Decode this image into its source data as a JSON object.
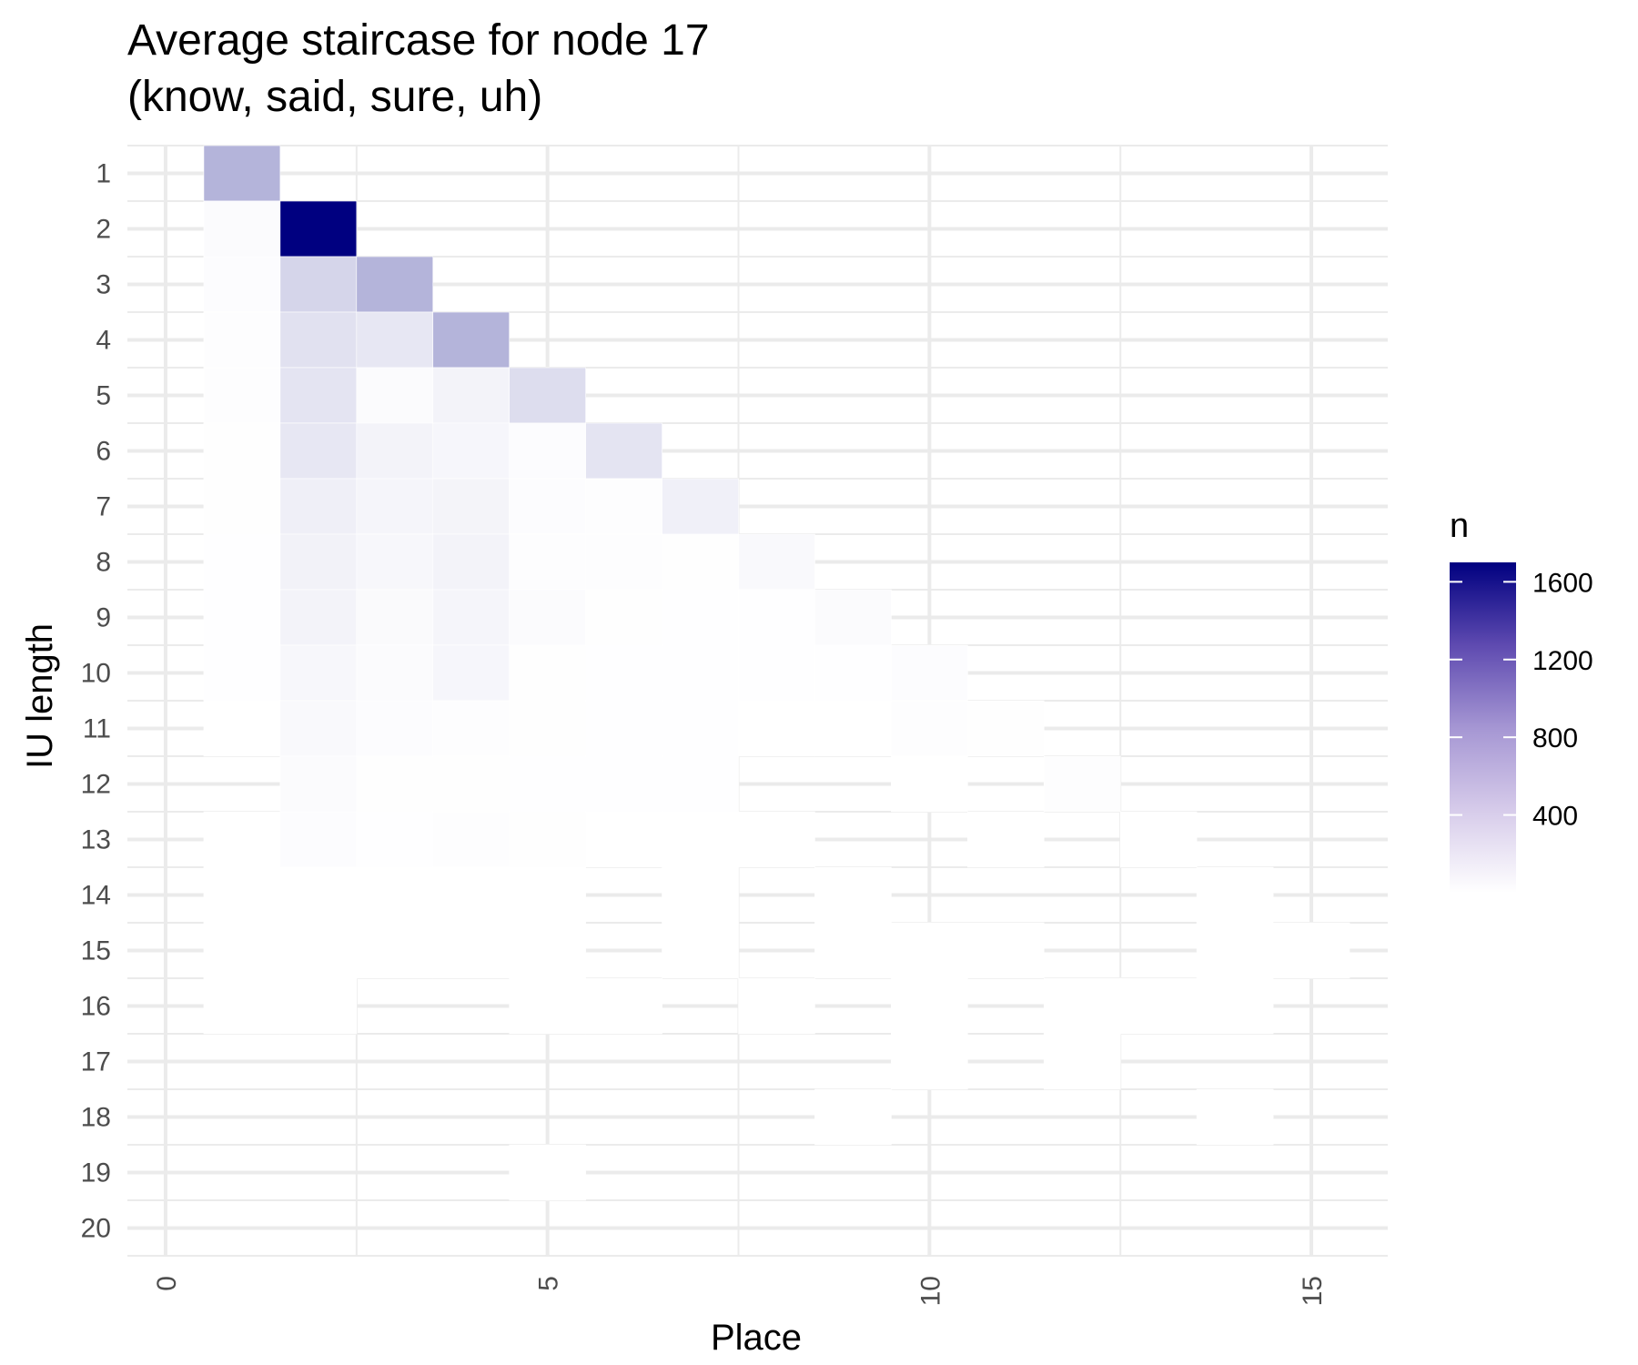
{
  "chart_data": {
    "type": "heatmap",
    "title_lines": [
      "Average staircase for node 17",
      "(know, said, sure, uh)"
    ],
    "xlabel": "Place",
    "ylabel": "IU length",
    "xlim": [
      -0.5,
      16
    ],
    "ylim": [
      0.5,
      20.5
    ],
    "x_ticks": [
      0,
      5,
      10,
      15
    ],
    "x_tick_labels": [
      "0",
      "5",
      "10",
      "15"
    ],
    "y_ticks": [
      1,
      2,
      3,
      4,
      5,
      6,
      7,
      8,
      9,
      10,
      11,
      12,
      13,
      14,
      15,
      16,
      17,
      18,
      19,
      20
    ],
    "y_tick_labels": [
      "1",
      "2",
      "3",
      "4",
      "5",
      "6",
      "7",
      "8",
      "9",
      "10",
      "11",
      "12",
      "13",
      "14",
      "15",
      "16",
      "17",
      "18",
      "19",
      "20"
    ],
    "y_reversed": true,
    "grid": true,
    "legend": {
      "title": "n",
      "position": "right",
      "min": 0,
      "max": 1700,
      "ticks": [
        400,
        800,
        1200,
        1600
      ],
      "tick_labels": [
        "400",
        "800",
        "1200",
        "1600"
      ],
      "low_color": "#ffffff",
      "high_color": "#000080"
    },
    "cells": [
      {
        "x": 1,
        "y": 1,
        "n": 500
      },
      {
        "x": 1,
        "y": 2,
        "n": 30
      },
      {
        "x": 2,
        "y": 2,
        "n": 1700
      },
      {
        "x": 1,
        "y": 3,
        "n": 20
      },
      {
        "x": 2,
        "y": 3,
        "n": 280
      },
      {
        "x": 3,
        "y": 3,
        "n": 500
      },
      {
        "x": 1,
        "y": 4,
        "n": 15
      },
      {
        "x": 2,
        "y": 4,
        "n": 200
      },
      {
        "x": 3,
        "y": 4,
        "n": 160
      },
      {
        "x": 4,
        "y": 4,
        "n": 500
      },
      {
        "x": 1,
        "y": 5,
        "n": 12
      },
      {
        "x": 2,
        "y": 5,
        "n": 180
      },
      {
        "x": 3,
        "y": 5,
        "n": 30
      },
      {
        "x": 4,
        "y": 5,
        "n": 80
      },
      {
        "x": 5,
        "y": 5,
        "n": 230
      },
      {
        "x": 1,
        "y": 6,
        "n": 10
      },
      {
        "x": 2,
        "y": 6,
        "n": 160
      },
      {
        "x": 3,
        "y": 6,
        "n": 80
      },
      {
        "x": 4,
        "y": 6,
        "n": 60
      },
      {
        "x": 5,
        "y": 6,
        "n": 20
      },
      {
        "x": 6,
        "y": 6,
        "n": 180
      },
      {
        "x": 1,
        "y": 7,
        "n": 8
      },
      {
        "x": 2,
        "y": 7,
        "n": 110
      },
      {
        "x": 3,
        "y": 7,
        "n": 70
      },
      {
        "x": 4,
        "y": 7,
        "n": 75
      },
      {
        "x": 5,
        "y": 7,
        "n": 20
      },
      {
        "x": 6,
        "y": 7,
        "n": 15
      },
      {
        "x": 7,
        "y": 7,
        "n": 100
      },
      {
        "x": 1,
        "y": 8,
        "n": 6
      },
      {
        "x": 2,
        "y": 8,
        "n": 90
      },
      {
        "x": 3,
        "y": 8,
        "n": 55
      },
      {
        "x": 4,
        "y": 8,
        "n": 80
      },
      {
        "x": 5,
        "y": 8,
        "n": 15
      },
      {
        "x": 6,
        "y": 8,
        "n": 12
      },
      {
        "x": 7,
        "y": 8,
        "n": 10
      },
      {
        "x": 8,
        "y": 8,
        "n": 40
      },
      {
        "x": 1,
        "y": 9,
        "n": 5
      },
      {
        "x": 2,
        "y": 9,
        "n": 80
      },
      {
        "x": 3,
        "y": 9,
        "n": 35
      },
      {
        "x": 4,
        "y": 9,
        "n": 70
      },
      {
        "x": 5,
        "y": 9,
        "n": 30
      },
      {
        "x": 6,
        "y": 9,
        "n": 8
      },
      {
        "x": 7,
        "y": 9,
        "n": 6
      },
      {
        "x": 8,
        "y": 9,
        "n": 4
      },
      {
        "x": 9,
        "y": 9,
        "n": 25
      },
      {
        "x": 1,
        "y": 10,
        "n": 4
      },
      {
        "x": 2,
        "y": 10,
        "n": 55
      },
      {
        "x": 3,
        "y": 10,
        "n": 30
      },
      {
        "x": 4,
        "y": 10,
        "n": 60
      },
      {
        "x": 5,
        "y": 10,
        "n": 10
      },
      {
        "x": 6,
        "y": 10,
        "n": 6
      },
      {
        "x": 7,
        "y": 10,
        "n": 5
      },
      {
        "x": 8,
        "y": 10,
        "n": 4
      },
      {
        "x": 9,
        "y": 10,
        "n": 4
      },
      {
        "x": 10,
        "y": 10,
        "n": 20
      },
      {
        "x": 1,
        "y": 11,
        "n": 3
      },
      {
        "x": 2,
        "y": 11,
        "n": 40
      },
      {
        "x": 3,
        "y": 11,
        "n": 20
      },
      {
        "x": 4,
        "y": 11,
        "n": 15
      },
      {
        "x": 5,
        "y": 11,
        "n": 10
      },
      {
        "x": 6,
        "y": 11,
        "n": 6
      },
      {
        "x": 7,
        "y": 11,
        "n": 5
      },
      {
        "x": 8,
        "y": 11,
        "n": 3
      },
      {
        "x": 9,
        "y": 11,
        "n": 3
      },
      {
        "x": 10,
        "y": 11,
        "n": 15
      },
      {
        "x": 11,
        "y": 11,
        "n": 8
      },
      {
        "x": 2,
        "y": 12,
        "n": 25
      },
      {
        "x": 3,
        "y": 12,
        "n": 10
      },
      {
        "x": 4,
        "y": 12,
        "n": 8
      },
      {
        "x": 5,
        "y": 12,
        "n": 5
      },
      {
        "x": 6,
        "y": 12,
        "n": 5
      },
      {
        "x": 7,
        "y": 12,
        "n": 5
      },
      {
        "x": 10,
        "y": 12,
        "n": 3
      },
      {
        "x": 12,
        "y": 12,
        "n": 15
      },
      {
        "x": 1,
        "y": 13,
        "n": 2
      },
      {
        "x": 2,
        "y": 13,
        "n": 20
      },
      {
        "x": 3,
        "y": 13,
        "n": 6
      },
      {
        "x": 4,
        "y": 13,
        "n": 12
      },
      {
        "x": 5,
        "y": 13,
        "n": 8
      },
      {
        "x": 6,
        "y": 13,
        "n": 3
      },
      {
        "x": 7,
        "y": 13,
        "n": 3
      },
      {
        "x": 8,
        "y": 13,
        "n": 3
      },
      {
        "x": 11,
        "y": 13,
        "n": 2
      },
      {
        "x": 13,
        "y": 13,
        "n": 3
      },
      {
        "x": 1,
        "y": 14,
        "n": 2
      },
      {
        "x": 2,
        "y": 14,
        "n": 2
      },
      {
        "x": 3,
        "y": 14,
        "n": 2
      },
      {
        "x": 4,
        "y": 14,
        "n": 2
      },
      {
        "x": 5,
        "y": 14,
        "n": 2
      },
      {
        "x": 7,
        "y": 14,
        "n": 2
      },
      {
        "x": 9,
        "y": 14,
        "n": 2
      },
      {
        "x": 14,
        "y": 14,
        "n": 2
      },
      {
        "x": 1,
        "y": 15,
        "n": 1
      },
      {
        "x": 2,
        "y": 15,
        "n": 2
      },
      {
        "x": 3,
        "y": 15,
        "n": 1
      },
      {
        "x": 4,
        "y": 15,
        "n": 1
      },
      {
        "x": 5,
        "y": 15,
        "n": 1
      },
      {
        "x": 7,
        "y": 15,
        "n": 1
      },
      {
        "x": 9,
        "y": 15,
        "n": 1
      },
      {
        "x": 10,
        "y": 15,
        "n": 1
      },
      {
        "x": 11,
        "y": 15,
        "n": 1
      },
      {
        "x": 14,
        "y": 15,
        "n": 1
      },
      {
        "x": 15,
        "y": 15,
        "n": 2
      },
      {
        "x": 1,
        "y": 16,
        "n": 1
      },
      {
        "x": 2,
        "y": 16,
        "n": 1
      },
      {
        "x": 5,
        "y": 16,
        "n": 1
      },
      {
        "x": 6,
        "y": 16,
        "n": 1
      },
      {
        "x": 8,
        "y": 16,
        "n": 1
      },
      {
        "x": 10,
        "y": 16,
        "n": 1
      },
      {
        "x": 12,
        "y": 16,
        "n": 1
      },
      {
        "x": 13,
        "y": 16,
        "n": 1
      },
      {
        "x": 14,
        "y": 16,
        "n": 1
      },
      {
        "x": 10,
        "y": 17,
        "n": 1
      },
      {
        "x": 12,
        "y": 17,
        "n": 1
      },
      {
        "x": 9,
        "y": 18,
        "n": 1
      },
      {
        "x": 14,
        "y": 18,
        "n": 1
      },
      {
        "x": 5,
        "y": 19,
        "n": 1
      }
    ]
  }
}
